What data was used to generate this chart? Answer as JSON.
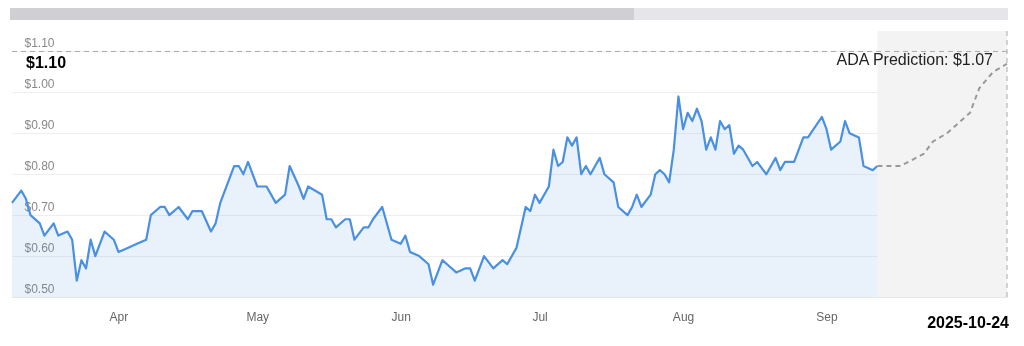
{
  "chart_data": {
    "type": "area",
    "xlim": [
      "2025-03-23",
      "2025-10-24"
    ],
    "xticks": [
      {
        "value": "2025-04-15",
        "label": "Apr"
      },
      {
        "value": "2025-05-15",
        "label": "May"
      },
      {
        "value": "2025-06-15",
        "label": "Jun"
      },
      {
        "value": "2025-07-15",
        "label": "Jul"
      },
      {
        "value": "2025-08-15",
        "label": "Aug"
      },
      {
        "value": "2025-09-15",
        "label": "Sep"
      }
    ],
    "ylim": [
      0.5,
      1.15
    ],
    "yticks": [
      {
        "value": 0.5,
        "label": "$0.50"
      },
      {
        "value": 0.6,
        "label": "$0.60"
      },
      {
        "value": 0.7,
        "label": "$0.70"
      },
      {
        "value": 0.8,
        "label": "$0.80"
      },
      {
        "value": 0.9,
        "label": "$0.90"
      },
      {
        "value": 1.0,
        "label": "$1.00"
      },
      {
        "value": 1.1,
        "label": "$1.10"
      }
    ],
    "grid": "y",
    "series": [
      {
        "color": "#4a90e2",
        "x": [
          "2025-03-23",
          "2025-03-25",
          "2025-03-26",
          "2025-03-27",
          "2025-03-29",
          "2025-03-30",
          "2025-04-01",
          "2025-04-02",
          "2025-04-04",
          "2025-04-05",
          "2025-04-06",
          "2025-04-07",
          "2025-04-08",
          "2025-04-09",
          "2025-04-10",
          "2025-04-11",
          "2025-04-12",
          "2025-04-14",
          "2025-04-15",
          "2025-04-17",
          "2025-04-19",
          "2025-04-21",
          "2025-04-22",
          "2025-04-24",
          "2025-04-25",
          "2025-04-26",
          "2025-04-28",
          "2025-04-30",
          "2025-05-01",
          "2025-05-03",
          "2025-05-05",
          "2025-05-06",
          "2025-05-07",
          "2025-05-09",
          "2025-05-10",
          "2025-05-11",
          "2025-05-12",
          "2025-05-13",
          "2025-05-15",
          "2025-05-17",
          "2025-05-19",
          "2025-05-21",
          "2025-05-22",
          "2025-05-24",
          "2025-05-25",
          "2025-05-26",
          "2025-05-29",
          "2025-05-30",
          "2025-05-31",
          "2025-06-01",
          "2025-06-03",
          "2025-06-04",
          "2025-06-05",
          "2025-06-07",
          "2025-06-08",
          "2025-06-09",
          "2025-06-11",
          "2025-06-13",
          "2025-06-15",
          "2025-06-16",
          "2025-06-17",
          "2025-06-19",
          "2025-06-21",
          "2025-06-22",
          "2025-06-24",
          "2025-06-25",
          "2025-06-27",
          "2025-06-29",
          "2025-06-30",
          "2025-07-01",
          "2025-07-03",
          "2025-07-05",
          "2025-07-07",
          "2025-07-08",
          "2025-07-10",
          "2025-07-12",
          "2025-07-13",
          "2025-07-14",
          "2025-07-15",
          "2025-07-17",
          "2025-07-18",
          "2025-07-19",
          "2025-07-20",
          "2025-07-21",
          "2025-07-22",
          "2025-07-23",
          "2025-07-24",
          "2025-07-25",
          "2025-07-26",
          "2025-07-27",
          "2025-07-28",
          "2025-07-29",
          "2025-07-31",
          "2025-08-01",
          "2025-08-03",
          "2025-08-04",
          "2025-08-05",
          "2025-08-06",
          "2025-08-08",
          "2025-08-09",
          "2025-08-10",
          "2025-08-11",
          "2025-08-12",
          "2025-08-13",
          "2025-08-14",
          "2025-08-15",
          "2025-08-16",
          "2025-08-17",
          "2025-08-18",
          "2025-08-19",
          "2025-08-20",
          "2025-08-21",
          "2025-08-22",
          "2025-08-23",
          "2025-08-24",
          "2025-08-25",
          "2025-08-26",
          "2025-08-27",
          "2025-08-28",
          "2025-08-30",
          "2025-08-31",
          "2025-09-02",
          "2025-09-04",
          "2025-09-05",
          "2025-09-06",
          "2025-09-08",
          "2025-09-10",
          "2025-09-11",
          "2025-09-14",
          "2025-09-15",
          "2025-09-16",
          "2025-09-18",
          "2025-09-19",
          "2025-09-20",
          "2025-09-22",
          "2025-09-23",
          "2025-09-25",
          "2025-09-26"
        ],
        "values": [
          0.73,
          0.76,
          0.74,
          0.7,
          0.68,
          0.65,
          0.68,
          0.65,
          0.66,
          0.64,
          0.54,
          0.59,
          0.57,
          0.64,
          0.6,
          0.63,
          0.66,
          0.64,
          0.61,
          0.62,
          0.63,
          0.64,
          0.7,
          0.72,
          0.72,
          0.7,
          0.72,
          0.69,
          0.71,
          0.71,
          0.66,
          0.68,
          0.73,
          0.79,
          0.82,
          0.82,
          0.8,
          0.83,
          0.77,
          0.77,
          0.73,
          0.75,
          0.82,
          0.77,
          0.74,
          0.77,
          0.75,
          0.69,
          0.69,
          0.67,
          0.69,
          0.69,
          0.64,
          0.67,
          0.67,
          0.69,
          0.72,
          0.64,
          0.63,
          0.65,
          0.61,
          0.6,
          0.58,
          0.53,
          0.59,
          0.58,
          0.56,
          0.57,
          0.57,
          0.54,
          0.6,
          0.57,
          0.59,
          0.58,
          0.62,
          0.72,
          0.71,
          0.75,
          0.73,
          0.77,
          0.86,
          0.82,
          0.83,
          0.89,
          0.87,
          0.89,
          0.8,
          0.82,
          0.8,
          0.82,
          0.84,
          0.8,
          0.78,
          0.72,
          0.7,
          0.72,
          0.75,
          0.72,
          0.75,
          0.8,
          0.81,
          0.8,
          0.78,
          0.86,
          0.99,
          0.91,
          0.95,
          0.93,
          0.96,
          0.93,
          0.86,
          0.89,
          0.86,
          0.93,
          0.91,
          0.92,
          0.85,
          0.87,
          0.86,
          0.82,
          0.83,
          0.8,
          0.84,
          0.81,
          0.83,
          0.83,
          0.89,
          0.89,
          0.94,
          0.91,
          0.86,
          0.88,
          0.93,
          0.9,
          0.89,
          0.82,
          0.81,
          0.82
        ]
      },
      {
        "type": "line",
        "color": "#999999",
        "line_style": "dashed",
        "x": [
          "2025-09-26",
          "2025-09-28",
          "2025-10-01",
          "2025-10-06",
          "2025-10-08",
          "2025-10-11",
          "2025-10-16",
          "2025-10-18",
          "2025-10-21",
          "2025-10-24"
        ],
        "values": [
          0.82,
          0.82,
          0.82,
          0.85,
          0.88,
          0.9,
          0.95,
          1.01,
          1.05,
          1.07
        ]
      }
    ],
    "bands": [
      {
        "axis": "x",
        "from": "2025-09-26",
        "to": "2025-10-24",
        "color": "#f3f3f3"
      }
    ],
    "ref_lines": [
      {
        "axis": "y",
        "value": 1.1,
        "label": "$1.10",
        "color": "#aaaaaa",
        "line_style": "dashed"
      },
      {
        "axis": "x",
        "value": "2025-10-24",
        "label": "2025-10-24",
        "color": "#aaaaaa",
        "line_style": "dashed"
      }
    ],
    "annotations": [
      {
        "text": "ADA Prediction: $1.07",
        "x": "2025-10-24",
        "y": 1.07
      }
    ]
  }
}
